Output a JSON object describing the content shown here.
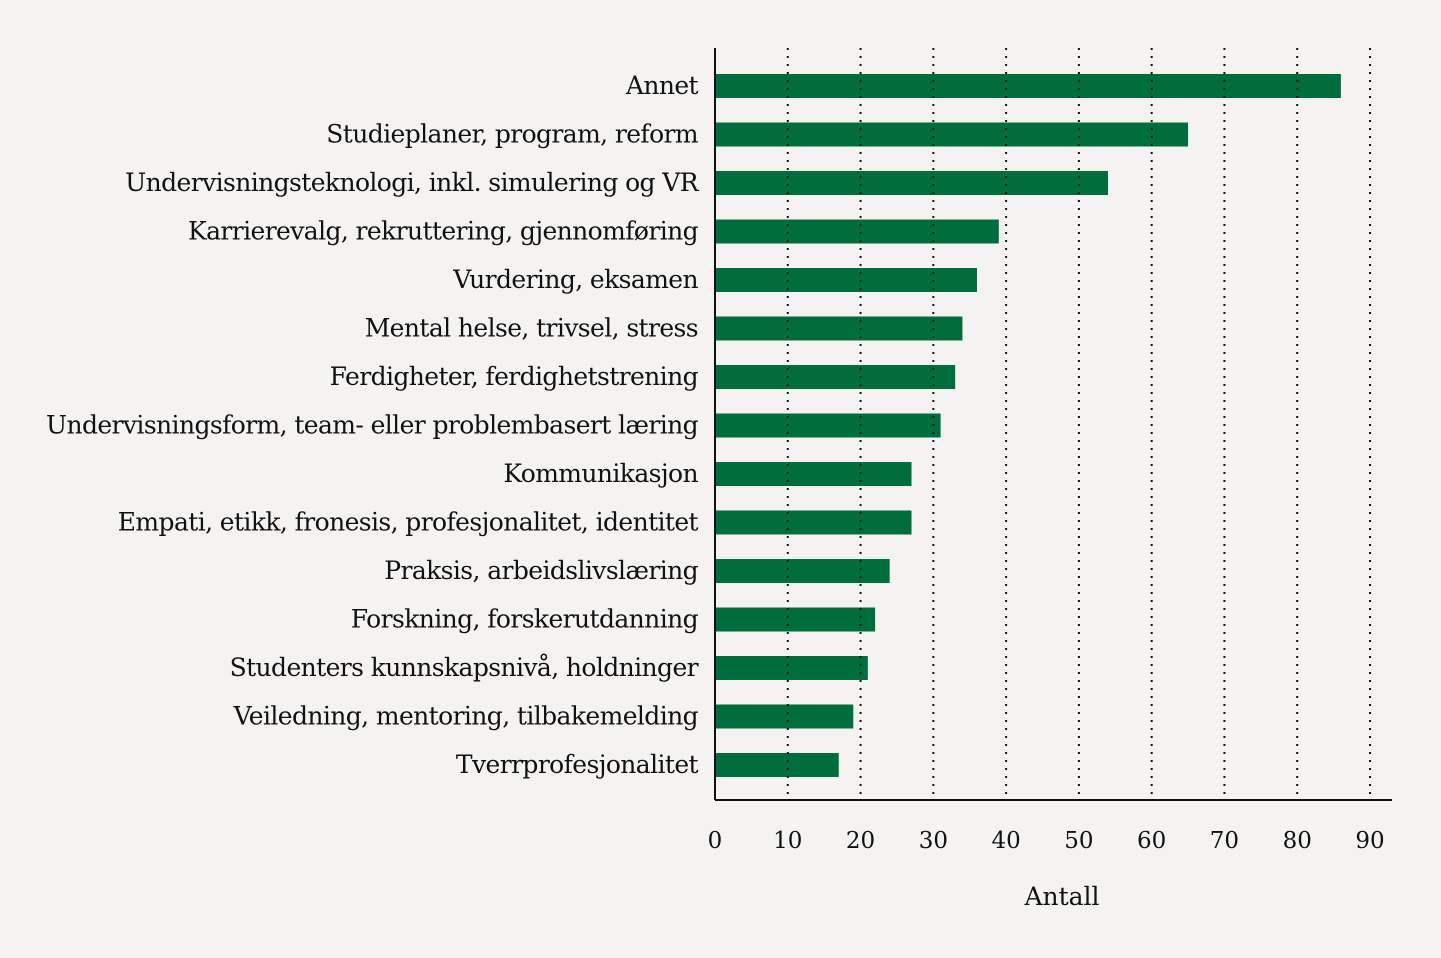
{
  "chart_data": {
    "type": "bar",
    "orientation": "horizontal",
    "categories": [
      "Annet",
      "Studieplaner, program, reform",
      "Undervisningsteknologi, inkl. simulering og VR",
      "Karrierevalg, rekruttering, gjennomføring",
      "Vurdering, eksamen",
      "Mental helse, trivsel, stress",
      "Ferdigheter, ferdighetstrening",
      "Undervisningsform, team- eller problembasert læring",
      "Kommunikasjon",
      "Empati, etikk, fronesis, profesjonalitet, identitet",
      "Praksis, arbeidslivslæring",
      "Forskning, forskerutdanning",
      "Studenters kunnskapsnivå, holdninger",
      "Veiledning, mentoring, tilbakemelding",
      "Tverrprofesjonalitet"
    ],
    "values": [
      86,
      65,
      54,
      39,
      36,
      34,
      33,
      31,
      27,
      27,
      24,
      22,
      21,
      19,
      17
    ],
    "xlabel": "Antall",
    "ylabel": "",
    "xlim": [
      0,
      90
    ],
    "ticks": [
      0,
      10,
      20,
      30,
      40,
      50,
      60,
      70,
      80,
      90
    ],
    "grid": "vertical dotted",
    "bar_color": "#006e3c"
  }
}
